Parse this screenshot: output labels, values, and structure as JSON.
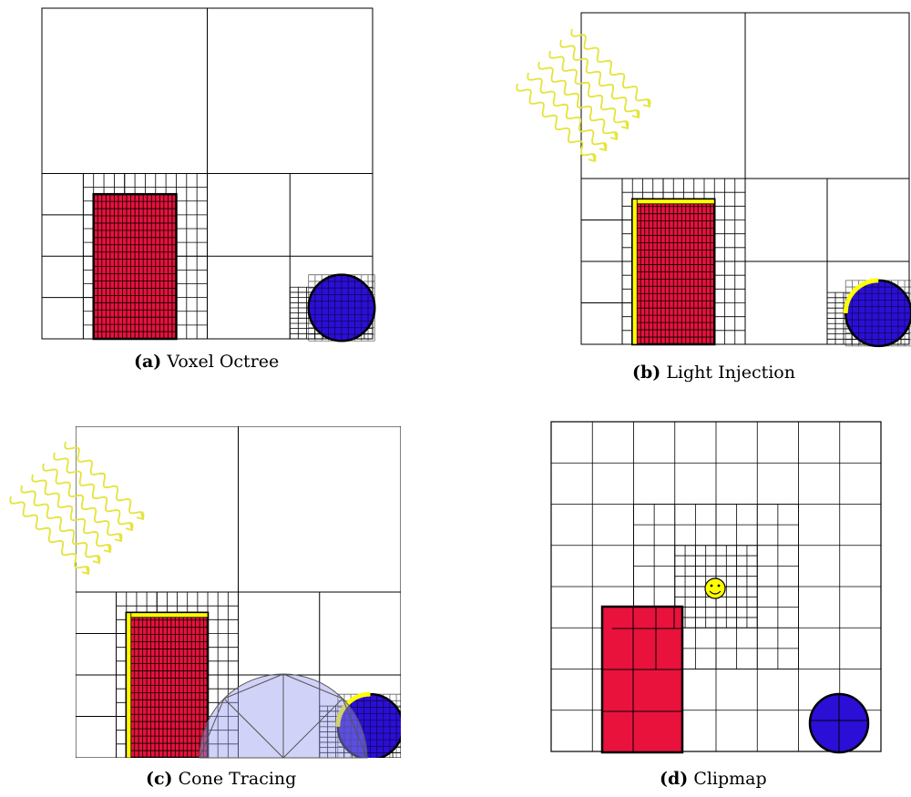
{
  "panels": [
    {
      "id": "a",
      "tag": "(a)",
      "title": "Voxel Octree"
    },
    {
      "id": "b",
      "tag": "(b)",
      "title": "Light Injection"
    },
    {
      "id": "c",
      "tag": "(c)",
      "title": "Cone Tracing"
    },
    {
      "id": "d",
      "tag": "(d)",
      "title": "Clipmap"
    }
  ],
  "colors": {
    "red": "#e8123c",
    "blue": "#2b0fd6",
    "yellow": "#ffff00",
    "light_ray": "#e4e43a",
    "cone": "#9a9cf0",
    "grid": "#000000"
  },
  "icons": {
    "light_rays": "wavy-light-ray-icon",
    "observer": "smiley-face-icon"
  }
}
